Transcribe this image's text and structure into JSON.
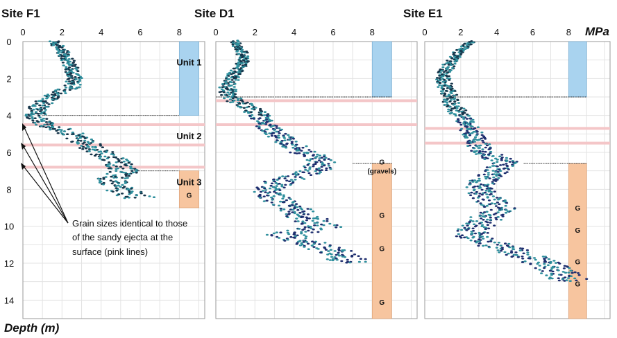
{
  "figure": {
    "units_label": "MPa",
    "depth_label": "Depth (m)",
    "note": [
      "Grain sizes identical to those",
      "of the sandy ejecta at the",
      "surface (pink lines)"
    ]
  },
  "colors": {
    "blue_box": "#a9d3ef",
    "orange_box": "#f7c59f",
    "pink_line": "#f4c6c8",
    "grid": "#e3e3e3",
    "dark_points": "#1e2e6e",
    "light_points": "#2f8f9d"
  },
  "chart_data": [
    {
      "type": "scatter",
      "title": "Site F1",
      "xlim": [
        0,
        9.3
      ],
      "ylim": [
        0,
        15
      ],
      "xticks": [
        "0",
        "2",
        "4",
        "6",
        "8"
      ],
      "yticks": [
        "0",
        "2",
        "4",
        "6",
        "8",
        "10",
        "12",
        "14"
      ],
      "blue_box": {
        "x": [
          8,
          9
        ],
        "depth": [
          0,
          4
        ]
      },
      "orange_box": {
        "x": [
          8,
          9
        ],
        "depth": [
          7,
          9
        ]
      },
      "boundary_lines": [
        {
          "depth": 4,
          "x": [
            1,
            8
          ]
        },
        {
          "depth": 7,
          "x": [
            5.5,
            8
          ]
        }
      ],
      "pink_lines": [
        4.5,
        5.6,
        6.8
      ],
      "units": [
        {
          "label": "Unit 1",
          "depth": 1.1
        },
        {
          "label": "Unit 2",
          "depth": 5.1
        },
        {
          "label": "Unit 3",
          "depth": 7.6
        }
      ],
      "g_labels": [
        {
          "label": "G",
          "depth": 8.3
        }
      ],
      "profile": {
        "depth": [
          0,
          0.5,
          1,
          1.5,
          2,
          2.5,
          3,
          3.5,
          4,
          4.5,
          5,
          5.5,
          6,
          6.5,
          7,
          7.5,
          8,
          8.5
        ],
        "qc": [
          1.6,
          2.0,
          2.3,
          2.5,
          2.7,
          2.5,
          1.4,
          0.8,
          0.6,
          1.2,
          2.5,
          3.2,
          4.0,
          4.8,
          5.2,
          4.5,
          5.0,
          6.0
        ]
      }
    },
    {
      "type": "scatter",
      "title": "Site D1",
      "xlim": [
        0,
        10.3
      ],
      "ylim": [
        0,
        15
      ],
      "xticks": [
        "0",
        "2",
        "4",
        "6",
        "8"
      ],
      "yticks": [],
      "blue_box": {
        "x": [
          8,
          9
        ],
        "depth": [
          0,
          3
        ]
      },
      "orange_box": {
        "x": [
          8,
          9
        ],
        "depth": [
          6.6,
          15
        ]
      },
      "boundary_lines": [
        {
          "depth": 3,
          "x": [
            0,
            9
          ]
        },
        {
          "depth": 6.6,
          "x": [
            7,
            9
          ]
        }
      ],
      "pink_lines": [
        3.2,
        4.5
      ],
      "units": [],
      "g_labels": [
        {
          "label": "G",
          "depth": 6.5
        },
        {
          "label": "(gravels)",
          "depth": 7.0
        },
        {
          "label": "G",
          "depth": 9.4
        },
        {
          "label": "G",
          "depth": 11.2
        },
        {
          "label": "G",
          "depth": 14.1
        }
      ],
      "profile": {
        "depth": [
          0,
          0.5,
          1,
          1.5,
          2,
          2.5,
          3,
          3.5,
          4,
          4.5,
          5,
          5.5,
          6,
          6.5,
          7,
          7.5,
          8,
          8.5,
          9,
          9.5,
          10,
          10.5,
          11,
          11.5,
          12
        ],
        "qc": [
          1.0,
          1.3,
          1.5,
          1.1,
          0.8,
          0.6,
          0.7,
          1.6,
          2.2,
          2.6,
          3.0,
          3.8,
          4.5,
          5.5,
          5.0,
          3.5,
          2.5,
          3.0,
          4.0,
          4.5,
          5.5,
          3.5,
          5.0,
          6.5,
          7.0
        ]
      }
    },
    {
      "type": "scatter",
      "title": "Site E1",
      "xlim": [
        0,
        10.3
      ],
      "ylim": [
        0,
        15
      ],
      "xticks": [
        "0",
        "2",
        "4",
        "6",
        "8"
      ],
      "yticks": [],
      "blue_box": {
        "x": [
          8,
          9
        ],
        "depth": [
          0,
          3
        ]
      },
      "orange_box": {
        "x": [
          8,
          9
        ],
        "depth": [
          6.6,
          15
        ]
      },
      "boundary_lines": [
        {
          "depth": 3,
          "x": [
            1,
            9
          ]
        },
        {
          "depth": 6.6,
          "x": [
            5.5,
            9
          ]
        }
      ],
      "pink_lines": [
        4.7,
        5.5
      ],
      "units": [],
      "g_labels": [
        {
          "label": "G",
          "depth": 9.0
        },
        {
          "label": "G",
          "depth": 10.2
        },
        {
          "label": "G",
          "depth": 11.9
        },
        {
          "label": "G",
          "depth": 13.1
        }
      ],
      "profile": {
        "depth": [
          0,
          0.5,
          1,
          1.5,
          2,
          2.5,
          3,
          3.5,
          4,
          4.5,
          5,
          5.5,
          6,
          6.5,
          7,
          7.5,
          8,
          8.5,
          9,
          9.5,
          10,
          10.5,
          11,
          11.5,
          12,
          12.5,
          13
        ],
        "qc": [
          2.6,
          2.0,
          1.5,
          1.2,
          1.0,
          1.2,
          1.4,
          1.6,
          2.0,
          2.4,
          2.6,
          3.0,
          3.2,
          4.5,
          4.0,
          3.2,
          3.0,
          3.5,
          4.2,
          3.5,
          3.0,
          2.5,
          4.0,
          5.5,
          6.5,
          7.5,
          8.0
        ]
      }
    }
  ]
}
